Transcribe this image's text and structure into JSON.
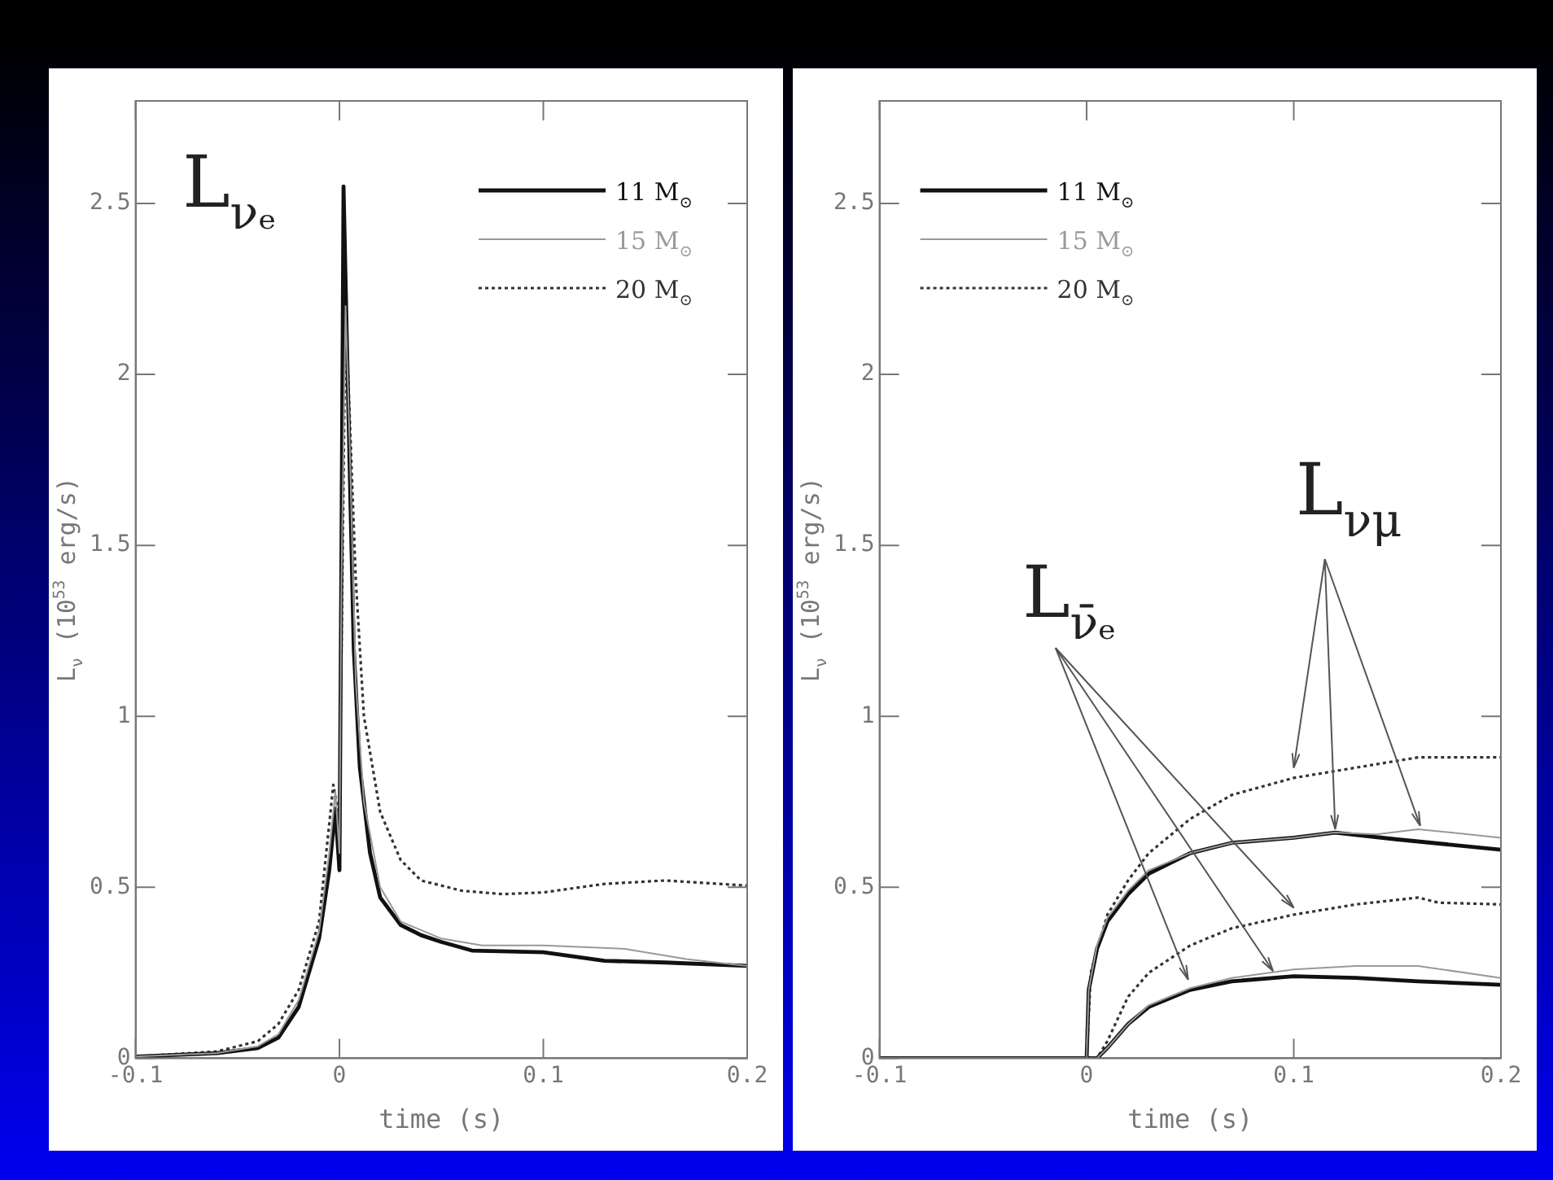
{
  "chart_data": [
    {
      "type": "line",
      "xlabel": "time (s)",
      "ylabel": "L$_{ν}$ (10$^{53}$ erg/s)",
      "xlim": [
        -0.1,
        0.2
      ],
      "xticks": [
        -0.1,
        0,
        0.1,
        0.2
      ],
      "ylim": [
        0,
        2.8
      ],
      "yticks": [
        0,
        0.5,
        1,
        1.5,
        2,
        2.5
      ],
      "legend": "top right",
      "annotations": [
        "L$_{νₑ}$"
      ],
      "series": [
        {
          "name": "11 M$_{⊙}$",
          "color": "#111111",
          "line_style": "solid",
          "x": [
            -0.1,
            -0.06,
            -0.04,
            -0.03,
            -0.02,
            -0.01,
            -0.005,
            -0.002,
            0,
            0.001,
            0.002,
            0.004,
            0.007,
            0.01,
            0.015,
            0.02,
            0.03,
            0.04,
            0.05,
            0.065,
            0.1,
            0.13,
            0.16,
            0.2
          ],
          "values": [
            0.005,
            0.015,
            0.03,
            0.06,
            0.15,
            0.35,
            0.55,
            0.73,
            0.55,
            1.5,
            2.55,
            2.0,
            1.2,
            0.85,
            0.6,
            0.47,
            0.39,
            0.36,
            0.34,
            0.315,
            0.31,
            0.285,
            0.28,
            0.27
          ]
        },
        {
          "name": "15 M$_{⊙}$",
          "color": "#999999",
          "line_style": "solid",
          "x": [
            -0.1,
            -0.06,
            -0.04,
            -0.03,
            -0.02,
            -0.01,
            -0.005,
            -0.002,
            0,
            0.001,
            0.003,
            0.005,
            0.008,
            0.012,
            0.02,
            0.03,
            0.05,
            0.07,
            0.1,
            0.14,
            0.17,
            0.2
          ],
          "values": [
            0.005,
            0.015,
            0.035,
            0.07,
            0.17,
            0.37,
            0.6,
            0.78,
            0.6,
            1.4,
            2.2,
            1.8,
            1.1,
            0.75,
            0.5,
            0.4,
            0.35,
            0.33,
            0.33,
            0.32,
            0.29,
            0.27
          ]
        },
        {
          "name": "20 M$_{⊙}$",
          "color": "#333333",
          "line_style": "dotted",
          "x": [
            -0.1,
            -0.06,
            -0.04,
            -0.03,
            -0.02,
            -0.01,
            -0.003,
            0,
            0.003,
            0.008,
            0.012,
            0.02,
            0.03,
            0.04,
            0.06,
            0.08,
            0.1,
            0.13,
            0.16,
            0.2
          ],
          "values": [
            0.005,
            0.02,
            0.05,
            0.1,
            0.2,
            0.4,
            0.8,
            0.7,
            2.2,
            1.4,
            1.0,
            0.72,
            0.58,
            0.52,
            0.49,
            0.48,
            0.485,
            0.51,
            0.52,
            0.505
          ]
        }
      ]
    },
    {
      "type": "line",
      "xlabel": "time (s)",
      "ylabel": "L$_{ν}$ (10$^{53}$ erg/s)",
      "xlim": [
        -0.1,
        0.2
      ],
      "xticks": [
        -0.1,
        0,
        0.1,
        0.2
      ],
      "ylim": [
        0,
        2.8
      ],
      "yticks": [
        0,
        0.5,
        1,
        1.5,
        2,
        2.5
      ],
      "legend": "top left",
      "annotations": [
        "L$_{ν̄ₑ}$",
        "L$_{νμ}$"
      ],
      "series": [
        {
          "name": "11 M$_{⊙}$",
          "color": "#111111",
          "line_style": "solid",
          "x": [
            -0.1,
            0,
            0.001,
            0.005,
            0.01,
            0.02,
            0.03,
            0.05,
            0.07,
            0.1,
            0.12,
            0.15,
            0.2
          ],
          "values": [
            0,
            0,
            0.2,
            0.32,
            0.4,
            0.48,
            0.54,
            0.6,
            0.63,
            0.645,
            0.66,
            0.64,
            0.61
          ]
        },
        {
          "name": "15 M$_{⊙}$",
          "color": "#999999",
          "line_style": "solid",
          "x": [
            -0.1,
            0,
            0.001,
            0.005,
            0.01,
            0.02,
            0.03,
            0.05,
            0.07,
            0.1,
            0.12,
            0.14,
            0.16,
            0.2
          ],
          "values": [
            0,
            0,
            0.2,
            0.33,
            0.41,
            0.49,
            0.55,
            0.6,
            0.63,
            0.645,
            0.66,
            0.655,
            0.67,
            0.645
          ]
        },
        {
          "name": "20 M$_{⊙}$",
          "color": "#333333",
          "line_style": "dotted",
          "x": [
            -0.1,
            0,
            0.002,
            0.01,
            0.02,
            0.03,
            0.05,
            0.07,
            0.1,
            0.13,
            0.16,
            0.2
          ],
          "values": [
            0,
            0,
            0.25,
            0.42,
            0.52,
            0.6,
            0.7,
            0.77,
            0.82,
            0.85,
            0.88,
            0.88
          ]
        },
        {
          "color": "#111111",
          "line_style": "solid",
          "x": [
            -0.1,
            0.005,
            0.01,
            0.02,
            0.03,
            0.05,
            0.07,
            0.1,
            0.13,
            0.16,
            0.2
          ],
          "values": [
            0,
            0,
            0.03,
            0.1,
            0.15,
            0.2,
            0.225,
            0.24,
            0.235,
            0.225,
            0.215
          ]
        },
        {
          "color": "#999999",
          "line_style": "solid",
          "x": [
            -0.1,
            0.005,
            0.01,
            0.02,
            0.03,
            0.05,
            0.07,
            0.1,
            0.13,
            0.16,
            0.2
          ],
          "values": [
            0,
            0,
            0.03,
            0.1,
            0.155,
            0.205,
            0.235,
            0.26,
            0.27,
            0.27,
            0.235
          ]
        },
        {
          "color": "#333333",
          "line_style": "dotted",
          "x": [
            -0.1,
            0.005,
            0.01,
            0.02,
            0.03,
            0.05,
            0.07,
            0.1,
            0.13,
            0.16,
            0.17,
            0.2
          ],
          "values": [
            0,
            0,
            0.05,
            0.18,
            0.25,
            0.33,
            0.38,
            0.42,
            0.45,
            0.47,
            0.455,
            0.45
          ]
        }
      ]
    }
  ]
}
